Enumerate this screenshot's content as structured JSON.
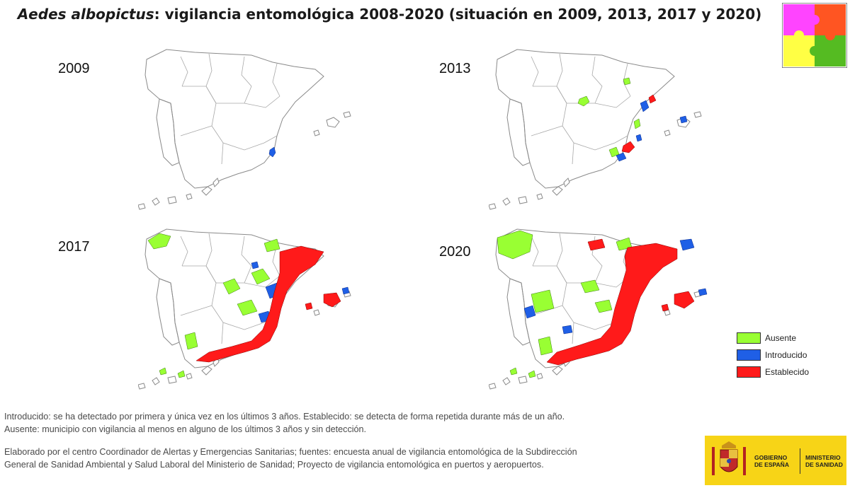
{
  "title": {
    "species": "Aedes albopictus",
    "rest": ": vigilancia entomológica 2008-2020 (situación en 2009, 2013, 2017 y 2020)"
  },
  "maps": [
    {
      "year": "2009"
    },
    {
      "year": "2013"
    },
    {
      "year": "2017"
    },
    {
      "year": "2020"
    }
  ],
  "legend": {
    "items": [
      {
        "label": "Ausente",
        "color": "#99ff33"
      },
      {
        "label": "Introducido",
        "color": "#1f5fe6"
      },
      {
        "label": "Establecido",
        "color": "#ff1a1a"
      }
    ]
  },
  "notes": {
    "line1": "Introducido: se ha detectado por primera y única vez en los últimos 3 años. Establecido: se detecta de forma repetida durante más de un año.",
    "line2": "Ausente: municipio con vigilancia al menos en alguno de los últimos 3 años y sin detección.",
    "line3": "Elaborado por el centro Coordinador de Alertas y Emergencias Sanitarias; fuentes: encuesta anual de vigilancia entomológica de la Subdirección",
    "line4": "General de Sanidad Ambiental y Salud Laboral del Ministerio de Sanidad; Proyecto de vigilancia entomológica en puertos y aeropuertos."
  },
  "logo": {
    "gobierno": "GOBIERNO\nDE ESPAÑA",
    "ministerio": "MINISTERIO\nDE SANIDAD"
  },
  "colors": {
    "puzzle": [
      "#ff44ff",
      "#ff5522",
      "#ffff44",
      "#55bb22"
    ],
    "logo_bg": "#f7d417"
  }
}
